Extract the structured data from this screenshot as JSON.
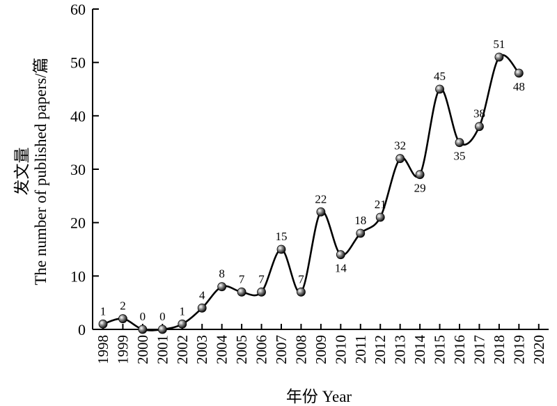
{
  "chart_data": {
    "type": "line",
    "smooth": true,
    "title": "",
    "xlabel": "年份 Year",
    "ylabel_cn": "发文量",
    "ylabel_en": "The number of published papers/篇",
    "ylim": [
      0,
      60
    ],
    "yticks": [
      "0",
      "10",
      "20",
      "30",
      "40",
      "50",
      "60"
    ],
    "xlim": [
      1998,
      2020
    ],
    "xticks": [
      "1998",
      "1999",
      "2000",
      "2001",
      "2002",
      "2003",
      "2004",
      "2005",
      "2006",
      "2007",
      "2008",
      "2009",
      "2010",
      "2011",
      "2012",
      "2013",
      "2014",
      "2015",
      "2016",
      "2017",
      "2018",
      "2019",
      "2020"
    ],
    "grid": false,
    "legend": "none",
    "series": [
      {
        "x": [
          1998,
          1999,
          2000,
          2001,
          2002,
          2003,
          2004,
          2005,
          2006,
          2007,
          2008,
          2009,
          2010,
          2011,
          2012,
          2013,
          2014,
          2015,
          2016,
          2017,
          2018,
          2019
        ],
        "values": [
          1,
          2,
          0,
          0,
          1,
          4,
          8,
          7,
          7,
          15,
          7,
          22,
          14,
          18,
          21,
          32,
          29,
          45,
          35,
          38,
          51,
          48
        ],
        "labels": [
          "1",
          "2",
          "0",
          "0",
          "1",
          "4",
          "8",
          "7",
          "7",
          "15",
          "7",
          "22",
          "14",
          "18",
          "21",
          "32",
          "29",
          "45",
          "35",
          "38",
          "51",
          "48"
        ],
        "label_below": [
          false,
          false,
          false,
          false,
          false,
          false,
          false,
          false,
          false,
          false,
          false,
          false,
          true,
          false,
          false,
          false,
          true,
          false,
          true,
          false,
          false,
          true
        ]
      }
    ],
    "colors": {
      "line": "#000000",
      "marker": "#333333"
    }
  }
}
